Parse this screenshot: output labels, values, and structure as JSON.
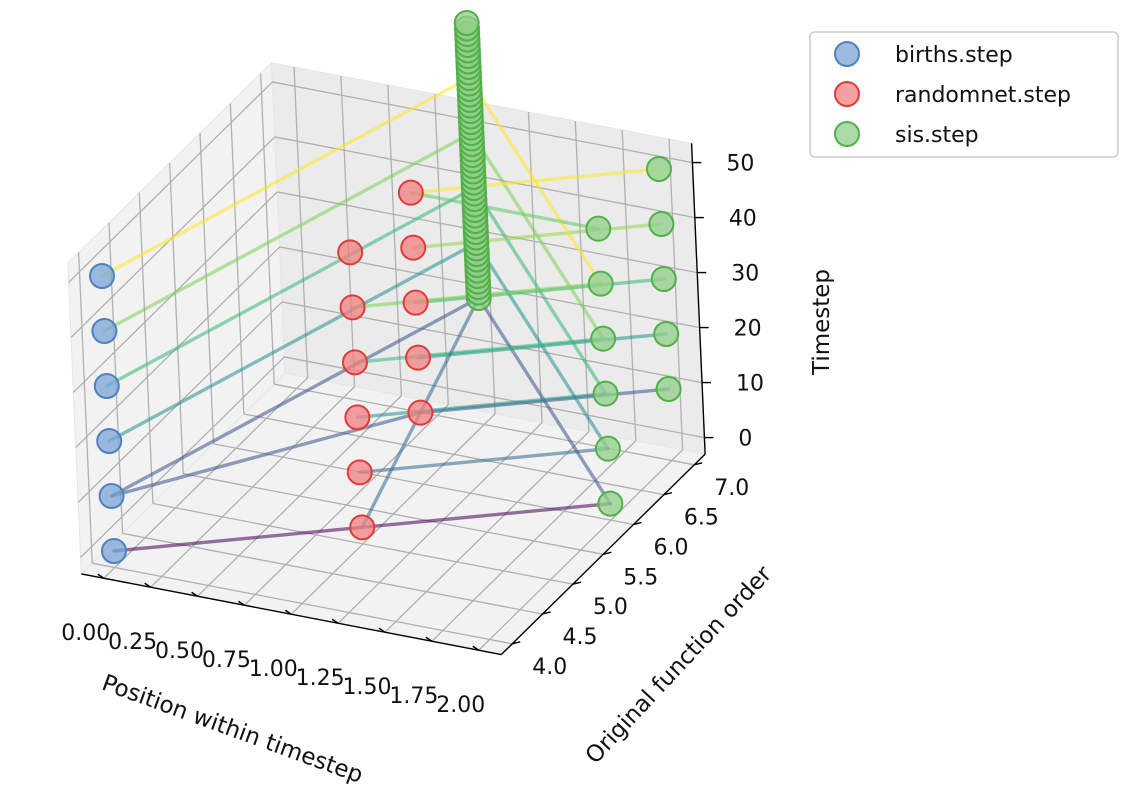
{
  "chart_data": {
    "type": "scatter",
    "projection": "3d",
    "title": "",
    "xlabel": "Position within timestep",
    "ylabel": "Original function order",
    "zlabel": "Timestep",
    "xlim": [
      0,
      2
    ],
    "ylim": [
      4,
      7
    ],
    "zlim": [
      0,
      50
    ],
    "xticks": [
      "0.00",
      "0.25",
      "0.50",
      "0.75",
      "1.00",
      "1.25",
      "1.50",
      "1.75",
      "2.00"
    ],
    "yticks": [
      "4.0",
      "4.5",
      "5.0",
      "5.5",
      "6.0",
      "6.5",
      "7.0"
    ],
    "zticks": [
      "0",
      "10",
      "20",
      "30",
      "40",
      "50"
    ],
    "grid": true,
    "legend": {
      "placement": "upper-right-outside"
    },
    "series": [
      {
        "name": "births.step",
        "color": "#7aa6d6",
        "edge": "#4f82bd",
        "points": [
          [
            0,
            4,
            0
          ],
          [
            0,
            4,
            10
          ],
          [
            0,
            4,
            20
          ],
          [
            0,
            4,
            30
          ],
          [
            0,
            4,
            40
          ],
          [
            0,
            4,
            50
          ]
        ]
      },
      {
        "name": "randomnet.step",
        "color": "#f08080",
        "edge": "#de3b3b",
        "points": [
          [
            1,
            5,
            0
          ],
          [
            1,
            5,
            10
          ],
          [
            1,
            5,
            20
          ],
          [
            1,
            5,
            30
          ],
          [
            1,
            5,
            40
          ],
          [
            1,
            5,
            50
          ],
          [
            1,
            6,
            10
          ],
          [
            1,
            6,
            20
          ],
          [
            1,
            6,
            30
          ],
          [
            1,
            6,
            40
          ],
          [
            1,
            6,
            50
          ]
        ]
      },
      {
        "name": "sis.step",
        "color": "#90cf8a",
        "edge": "#52b04a",
        "points": [
          [
            2,
            6,
            0
          ],
          [
            2,
            6,
            10
          ],
          [
            2,
            6,
            20
          ],
          [
            2,
            6,
            30
          ],
          [
            2,
            6,
            40
          ],
          [
            2,
            6,
            50
          ],
          [
            2,
            7,
            10
          ],
          [
            2,
            7,
            20
          ],
          [
            2,
            7,
            30
          ],
          [
            2,
            7,
            40
          ],
          [
            2,
            7,
            50
          ],
          [
            1,
            7,
            20
          ],
          [
            1,
            7,
            21
          ],
          [
            1,
            7,
            22
          ],
          [
            1,
            7,
            23
          ],
          [
            1,
            7,
            24
          ],
          [
            1,
            7,
            25
          ],
          [
            1,
            7,
            26
          ],
          [
            1,
            7,
            27
          ],
          [
            1,
            7,
            28
          ],
          [
            1,
            7,
            29
          ],
          [
            1,
            7,
            30
          ],
          [
            1,
            7,
            31
          ],
          [
            1,
            7,
            32
          ],
          [
            1,
            7,
            33
          ],
          [
            1,
            7,
            34
          ],
          [
            1,
            7,
            35
          ],
          [
            1,
            7,
            36
          ],
          [
            1,
            7,
            37
          ],
          [
            1,
            7,
            38
          ],
          [
            1,
            7,
            39
          ],
          [
            1,
            7,
            40
          ],
          [
            1,
            7,
            41
          ],
          [
            1,
            7,
            42
          ],
          [
            1,
            7,
            43
          ],
          [
            1,
            7,
            44
          ],
          [
            1,
            7,
            45
          ],
          [
            1,
            7,
            46
          ],
          [
            1,
            7,
            47
          ],
          [
            1,
            7,
            48
          ],
          [
            1,
            7,
            49
          ],
          [
            1,
            7,
            50
          ],
          [
            1,
            7,
            51
          ],
          [
            1,
            7,
            52
          ],
          [
            1,
            7,
            53
          ],
          [
            1,
            7,
            54
          ],
          [
            1,
            7,
            55
          ],
          [
            1,
            7,
            56
          ],
          [
            1,
            7,
            57
          ],
          [
            1,
            7,
            58
          ],
          [
            1,
            7,
            59
          ],
          [
            1,
            7,
            60
          ],
          [
            1,
            7,
            61
          ],
          [
            1,
            7,
            62
          ],
          [
            1,
            7,
            63
          ],
          [
            1,
            7,
            64
          ],
          [
            1,
            7,
            65
          ],
          [
            1,
            7,
            66
          ],
          [
            1,
            7,
            67
          ],
          [
            1,
            7,
            68
          ],
          [
            1,
            7,
            69
          ],
          [
            1,
            7,
            70
          ]
        ]
      }
    ],
    "trajectories": [
      {
        "timestep": 0,
        "color": "#440154",
        "points": [
          [
            0,
            4,
            0
          ],
          [
            1,
            5,
            0
          ],
          [
            2,
            6,
            0
          ]
        ]
      },
      {
        "timestep": 10,
        "color": "#3b528b",
        "points": [
          [
            0,
            4,
            10
          ],
          [
            1,
            7,
            20
          ],
          [
            2,
            6,
            0
          ]
        ]
      },
      {
        "timestep": 20,
        "color": "#3b528b",
        "points": [
          [
            0,
            4,
            10
          ],
          [
            1,
            6,
            10
          ],
          [
            2,
            7,
            10
          ]
        ]
      },
      {
        "timestep": 20,
        "color": "#21918c",
        "points": [
          [
            0,
            4,
            20
          ],
          [
            1,
            7,
            30
          ],
          [
            2,
            6,
            10
          ]
        ]
      },
      {
        "timestep": 20,
        "color": "#31688e",
        "points": [
          [
            1,
            5,
            10
          ],
          [
            2,
            6,
            10
          ]
        ]
      },
      {
        "timestep": 20,
        "color": "#21918c",
        "points": [
          [
            1,
            6,
            20
          ],
          [
            2,
            7,
            20
          ]
        ]
      },
      {
        "timestep": 30,
        "color": "#35b779",
        "points": [
          [
            0,
            4,
            30
          ],
          [
            1,
            7,
            40
          ],
          [
            2,
            6,
            20
          ]
        ]
      },
      {
        "timestep": 30,
        "color": "#21918c",
        "points": [
          [
            1,
            5,
            20
          ],
          [
            2,
            6,
            20
          ]
        ]
      },
      {
        "timestep": 30,
        "color": "#35b779",
        "points": [
          [
            1,
            6,
            30
          ],
          [
            2,
            7,
            30
          ]
        ]
      },
      {
        "timestep": 40,
        "color": "#7ad151",
        "points": [
          [
            0,
            4,
            40
          ],
          [
            1,
            7,
            50
          ],
          [
            2,
            6,
            30
          ]
        ]
      },
      {
        "timestep": 40,
        "color": "#35b779",
        "points": [
          [
            1,
            5,
            30
          ],
          [
            2,
            6,
            30
          ]
        ]
      },
      {
        "timestep": 40,
        "color": "#90d743",
        "points": [
          [
            1,
            6,
            40
          ],
          [
            2,
            7,
            40
          ]
        ]
      },
      {
        "timestep": 50,
        "color": "#fde725",
        "points": [
          [
            0,
            4,
            50
          ],
          [
            1,
            7,
            60
          ],
          [
            2,
            6,
            40
          ]
        ]
      },
      {
        "timestep": 50,
        "color": "#7ad151",
        "points": [
          [
            1,
            5,
            40
          ],
          [
            2,
            6,
            40
          ]
        ]
      },
      {
        "timestep": 50,
        "color": "#fde725",
        "points": [
          [
            1,
            6,
            50
          ],
          [
            2,
            7,
            50
          ]
        ]
      },
      {
        "timestep": 10,
        "color": "#31688e",
        "points": [
          [
            1,
            5,
            0
          ],
          [
            1,
            7,
            20
          ]
        ]
      },
      {
        "timestep": 40,
        "color": "#5ec962",
        "points": [
          [
            1,
            6,
            50
          ],
          [
            2,
            6,
            50
          ]
        ]
      }
    ]
  }
}
